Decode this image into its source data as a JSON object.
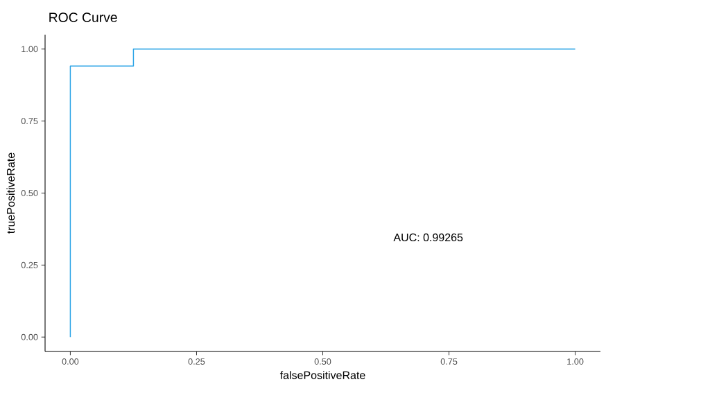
{
  "chart_data": {
    "type": "line",
    "title": "ROC Curve",
    "xlabel": "falsePositiveRate",
    "ylabel": "truePositiveRate",
    "x": [
      0,
      0,
      0.125,
      0.125,
      1
    ],
    "series": [
      {
        "color": "#2aa3e6",
        "values": [
          0,
          0.941,
          0.941,
          1,
          1
        ]
      }
    ],
    "xlim": [
      -0.05,
      1.05
    ],
    "ylim": [
      -0.05,
      1.05
    ],
    "xticks": [
      {
        "value": 0,
        "label": "0.00"
      },
      {
        "value": 0.25,
        "label": "0.25"
      },
      {
        "value": 0.5,
        "label": "0.50"
      },
      {
        "value": 0.75,
        "label": "0.75"
      },
      {
        "value": 1,
        "label": "1.00"
      }
    ],
    "yticks": [
      {
        "value": 0,
        "label": "0.00"
      },
      {
        "value": 0.25,
        "label": "0.25"
      },
      {
        "value": 0.5,
        "label": "0.50"
      },
      {
        "value": 0.75,
        "label": "0.75"
      },
      {
        "value": 1,
        "label": "1.00"
      }
    ],
    "annotations": [
      "AUC: 0.99265"
    ],
    "marker": "none",
    "line_style": "solid"
  }
}
